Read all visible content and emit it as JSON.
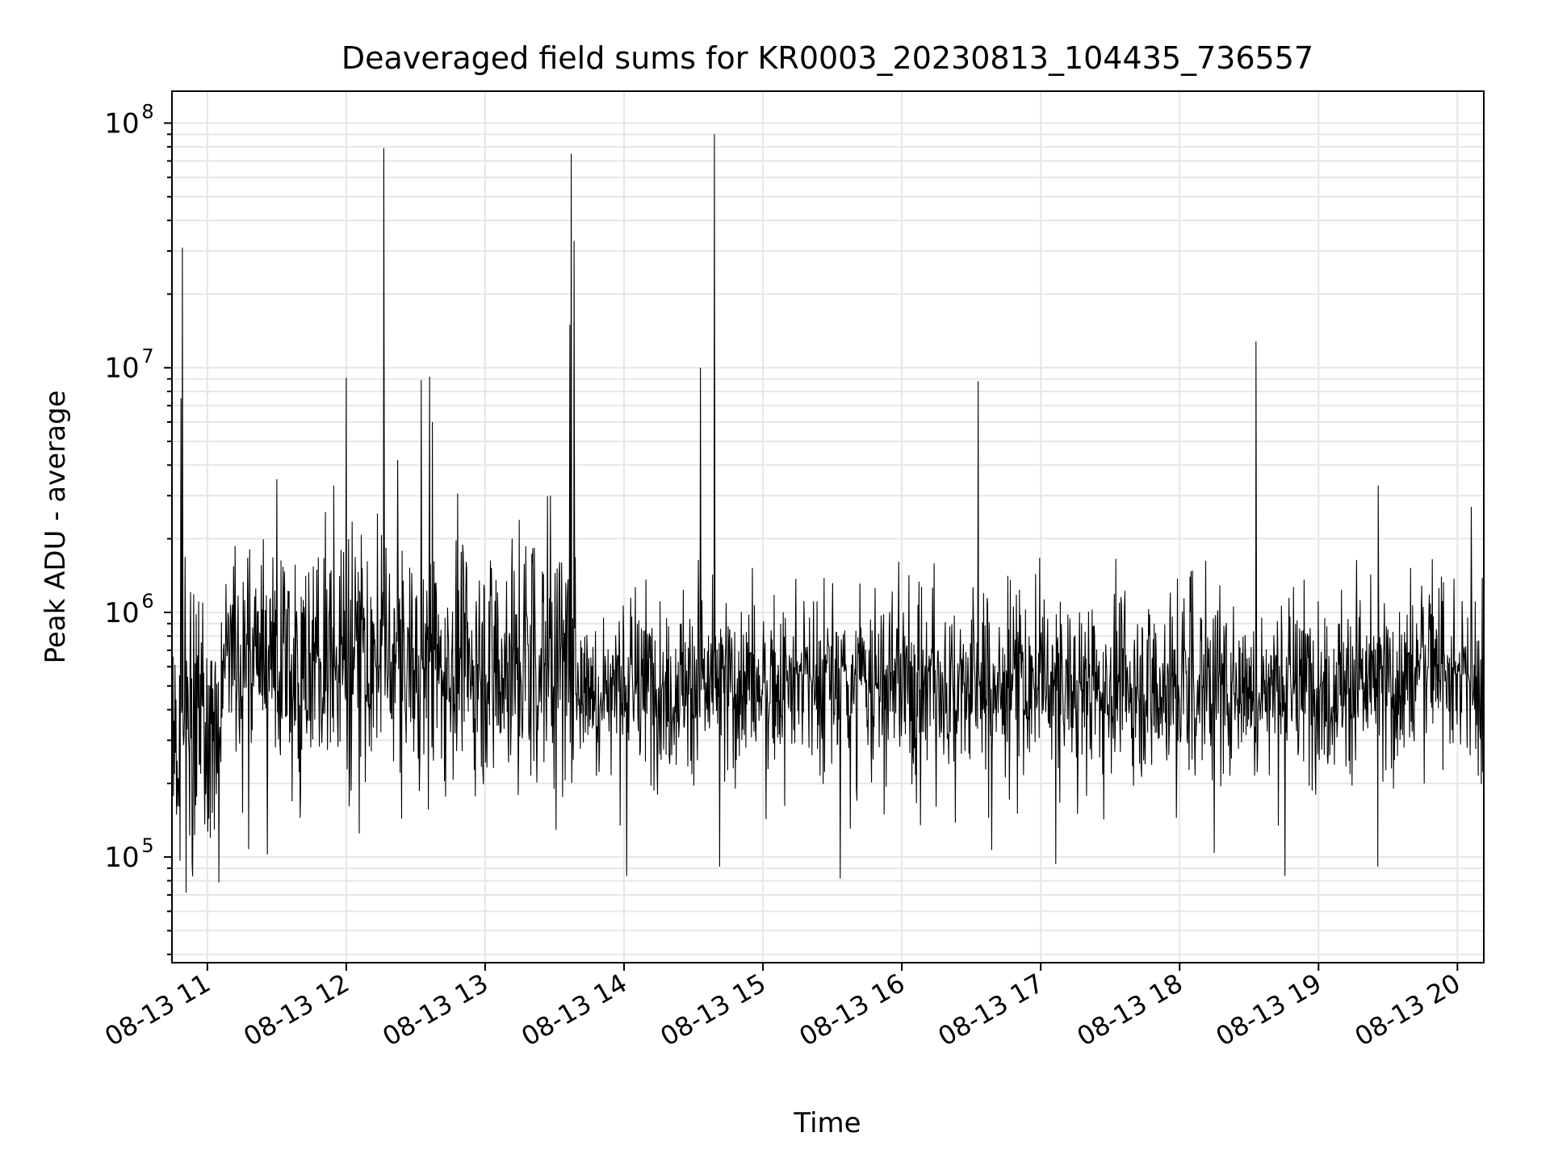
{
  "chart_data": {
    "type": "line",
    "title": "Deaveraged field sums for KR0003_20230813_104435_736557",
    "xlabel": "Time",
    "ylabel": "Peak ADU - average",
    "x_ticks": [
      "08-13 11",
      "08-13 12",
      "08-13 13",
      "08-13 14",
      "08-13 15",
      "08-13 16",
      "08-13 17",
      "08-13 18",
      "08-13 19",
      "08-13 20"
    ],
    "x_tick_hours": [
      11,
      12,
      13,
      14,
      15,
      16,
      17,
      18,
      19,
      20
    ],
    "xlim_hours": [
      10.745,
      20.19
    ],
    "y_scale": "log",
    "ylim": [
      37000,
      135000000
    ],
    "y_ticks": [
      {
        "base": "10",
        "exp": "5",
        "value": 100000
      },
      {
        "base": "10",
        "exp": "6",
        "value": 1000000
      },
      {
        "base": "10",
        "exp": "7",
        "value": 10000000
      },
      {
        "base": "10",
        "exp": "8",
        "value": 100000000
      }
    ],
    "grid": true,
    "line_color": "#000000",
    "grid_color": "#e6e6e6",
    "series": [
      {
        "noise_median": 500000,
        "spikes": [
          {
            "x": 10.82,
            "y": 31000000
          },
          {
            "x": 10.81,
            "y": 7500000
          },
          {
            "x": 12.27,
            "y": 79000000
          },
          {
            "x": 12.0,
            "y": 9100000
          },
          {
            "x": 12.54,
            "y": 8900000
          },
          {
            "x": 12.6,
            "y": 9200000
          },
          {
            "x": 12.62,
            "y": 6000000
          },
          {
            "x": 12.37,
            "y": 4200000
          },
          {
            "x": 13.62,
            "y": 75000000
          },
          {
            "x": 13.64,
            "y": 33000000
          },
          {
            "x": 13.61,
            "y": 15000000
          },
          {
            "x": 14.55,
            "y": 10000000
          },
          {
            "x": 14.65,
            "y": 90000000
          },
          {
            "x": 16.55,
            "y": 8800000
          },
          {
            "x": 18.55,
            "y": 12800000
          },
          {
            "x": 19.43,
            "y": 3300000
          },
          {
            "x": 20.1,
            "y": 2700000
          },
          {
            "x": 11.5,
            "y": 3500000
          },
          {
            "x": 11.91,
            "y": 3300000
          },
          {
            "x": 13.47,
            "y": 3000000
          }
        ]
      }
    ]
  }
}
